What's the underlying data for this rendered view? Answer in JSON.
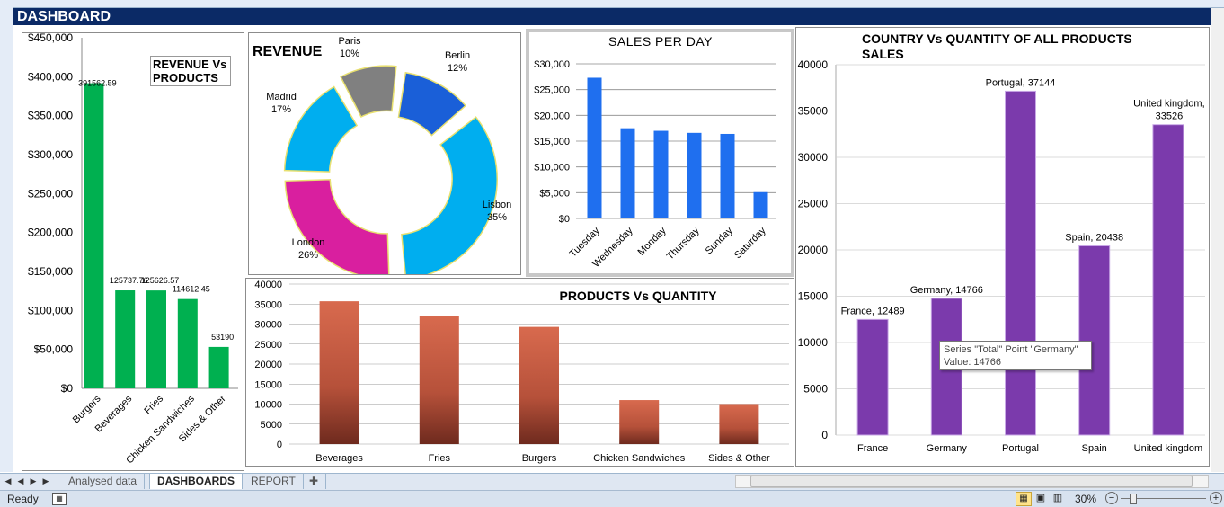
{
  "window": {
    "sheet_title": "DASHBOARD"
  },
  "revenue_products": {
    "title_line1": "REVENUE Vs",
    "title_line2": "PRODUCTS",
    "y_ticks": [
      "$0",
      "$50,000",
      "$100,000",
      "$150,000",
      "$200,000",
      "$250,000",
      "$300,000",
      "$350,000",
      "$400,000",
      "$450,000"
    ],
    "bar_color": "#00b050"
  },
  "revenue_donut": {
    "title": "REVENUE",
    "labels": [
      {
        "name": "Berlin",
        "pct": "12%"
      },
      {
        "name": "Lisbon",
        "pct": "35%"
      },
      {
        "name": "London",
        "pct": "26%"
      },
      {
        "name": "Madrid",
        "pct": "17%"
      },
      {
        "name": "Paris",
        "pct": "10%"
      }
    ]
  },
  "sales_per_day": {
    "title": "SALES  PER  DAY",
    "y_ticks": [
      "$0",
      "$5,000",
      "$10,000",
      "$15,000",
      "$20,000",
      "$25,000",
      "$30,000"
    ],
    "bar_color": "#1f6fef"
  },
  "products_quantity": {
    "title": "PRODUCTS Vs  QUANTITY",
    "y_ticks": [
      "0",
      "5000",
      "10000",
      "15000",
      "20000",
      "25000",
      "30000",
      "35000",
      "40000"
    ]
  },
  "country_quantity": {
    "title_line1": "COUNTRY Vs QUANTITY OF ALL PRODUCTS",
    "title_line2": "SALES",
    "y_ticks": [
      "0",
      "5000",
      "10000",
      "15000",
      "20000",
      "25000",
      "30000",
      "35000",
      "40000"
    ],
    "bar_color": "#7b3aac",
    "tooltip_line1": "Series \"Total\" Point \"Germany\"",
    "tooltip_line2": "Value: 14766"
  },
  "chart_data": [
    {
      "type": "bar",
      "title": "REVENUE Vs PRODUCTS",
      "categories": [
        "Burgers",
        "Beverages",
        "Fries",
        "Chicken Sandwiches",
        "Sides & Other"
      ],
      "values": [
        391562.59,
        125737.76,
        125626.57,
        114612.45,
        53190
      ],
      "value_labels": [
        "391562.59",
        "125737.76",
        "125626.57",
        "114612.45",
        "53190"
      ],
      "ylim": [
        0,
        450000
      ],
      "legend": "none"
    },
    {
      "type": "pie",
      "title": "REVENUE",
      "categories": [
        "Berlin",
        "Lisbon",
        "London",
        "Madrid",
        "Paris"
      ],
      "values": [
        12,
        35,
        26,
        17,
        10
      ],
      "colors": [
        "#1a5fd8",
        "#00aeef",
        "#d91f9f",
        "#00aeef",
        "#808080"
      ]
    },
    {
      "type": "bar",
      "title": "SALES  PER  DAY",
      "categories": [
        "Tuesday",
        "Wednesday",
        "Monday",
        "Thursday",
        "Sunday",
        "Saturday"
      ],
      "values": [
        27300,
        17500,
        17000,
        16600,
        16400,
        5100
      ],
      "ylim": [
        0,
        30000
      ]
    },
    {
      "type": "bar",
      "title": "PRODUCTS Vs  QUANTITY",
      "categories": [
        "Beverages",
        "Fries",
        "Burgers",
        "Chicken Sandwiches",
        "Sides & Other"
      ],
      "values": [
        35700,
        32100,
        29300,
        11000,
        10000
      ],
      "ylim": [
        0,
        40000
      ]
    },
    {
      "type": "bar",
      "title": "COUNTRY Vs QUANTITY OF ALL PRODUCTS SALES",
      "categories": [
        "France",
        "Germany",
        "Portugal",
        "Spain",
        "United kingdom"
      ],
      "values": [
        12489,
        14766,
        37144,
        20438,
        33526
      ],
      "value_labels": [
        "France, 12489",
        "Germany, 14766",
        "Portugal, 37144",
        "Spain, 20438",
        "United kingdom, 33526"
      ],
      "ylim": [
        0,
        40000
      ]
    }
  ],
  "tabs": [
    {
      "label": "Analysed data",
      "active": false
    },
    {
      "label": "DASHBOARDS",
      "active": true
    },
    {
      "label": "REPORT",
      "active": false
    }
  ],
  "status": {
    "ready": "Ready",
    "zoom": "30%"
  }
}
